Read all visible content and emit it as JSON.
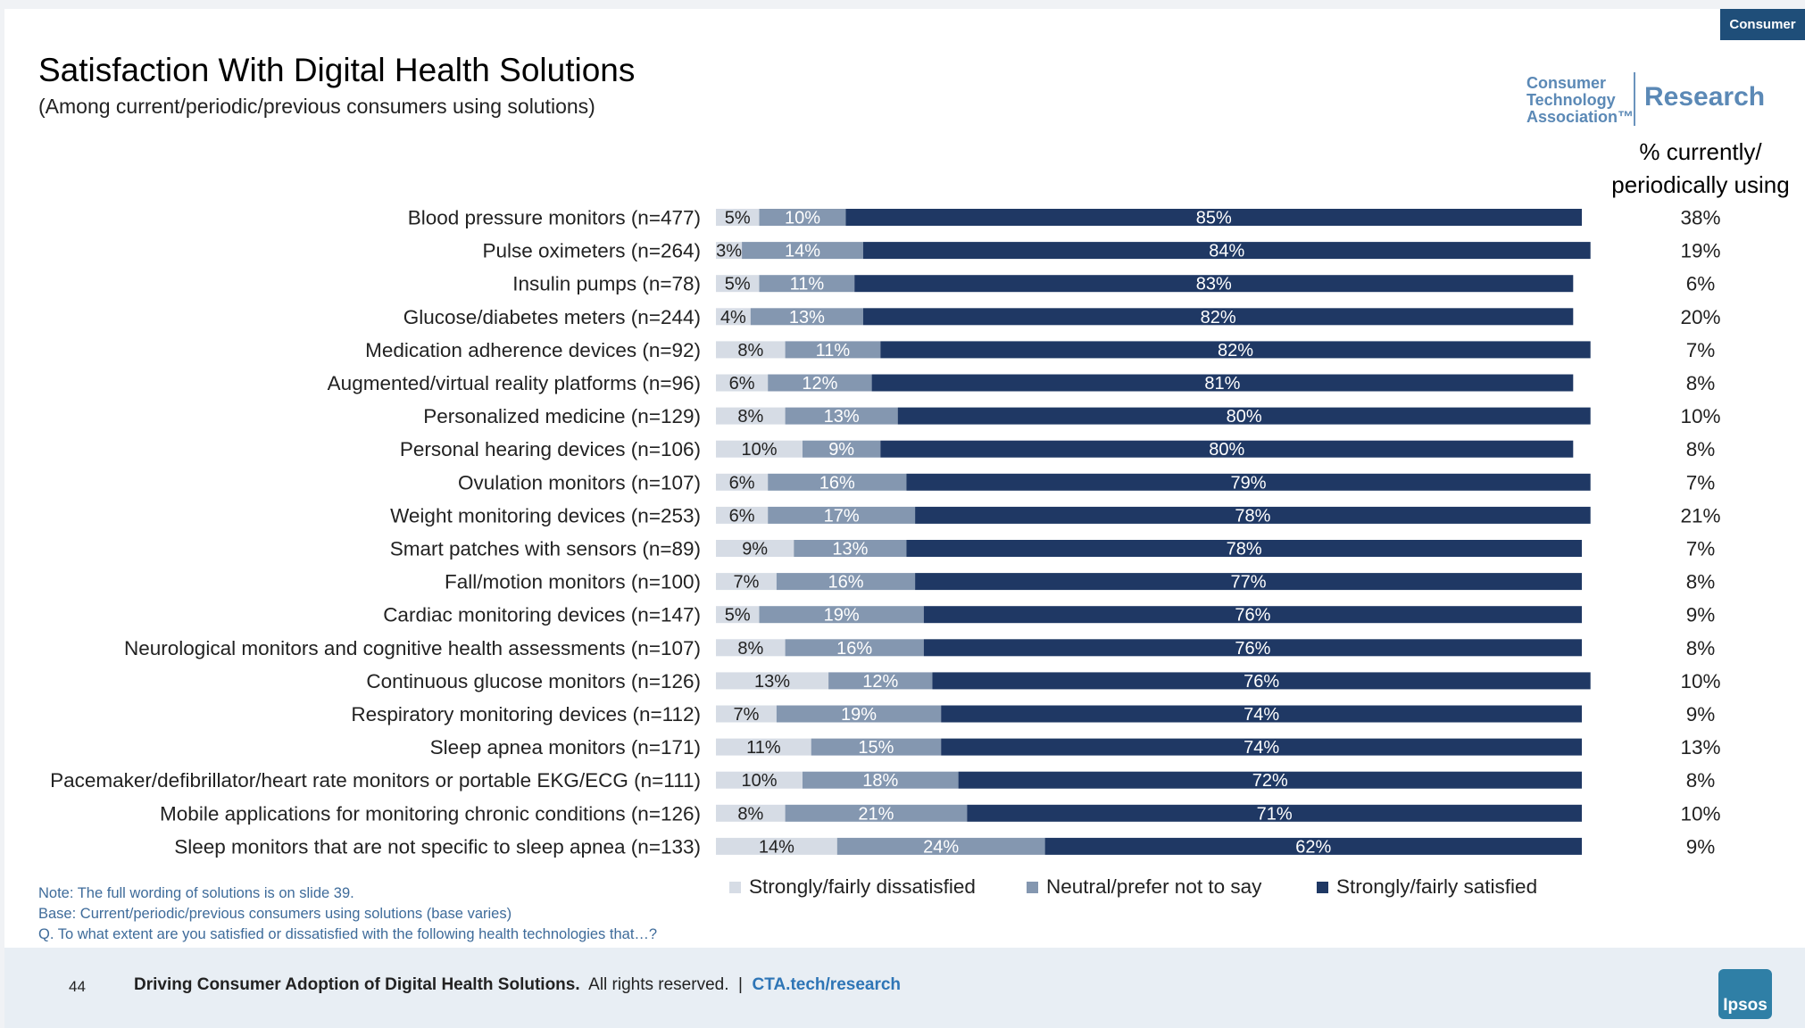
{
  "header": {
    "tag": "Consumer",
    "title": "Satisfaction With Digital Health Solutions",
    "subtitle": "(Among current/periodic/previous consumers using solutions)",
    "logo_org": "Consumer\nTechnology\nAssociation™",
    "logo_research": "Research"
  },
  "side_header": "% currently/ periodically using",
  "colors": {
    "dissatisfied": "#d6dce5",
    "neutral": "#8497b0",
    "satisfied": "#1f3864"
  },
  "chart_data": {
    "type": "bar",
    "orientation": "horizontal",
    "stacked": true,
    "categories": [
      "Blood pressure monitors (n=477)",
      "Pulse oximeters (n=264)",
      "Insulin pumps (n=78)",
      "Glucose/diabetes meters (n=244)",
      "Medication adherence devices (n=92)",
      "Augmented/virtual reality platforms (n=96)",
      "Personalized medicine (n=129)",
      "Personal hearing devices (n=106)",
      "Ovulation monitors (n=107)",
      "Weight monitoring devices (n=253)",
      "Smart patches with sensors (n=89)",
      "Fall/motion monitors (n=100)",
      "Cardiac monitoring devices (n=147)",
      "Neurological monitors and cognitive health assessments (n=107)",
      "Continuous glucose monitors (n=126)",
      "Respiratory monitoring devices (n=112)",
      "Sleep apnea monitors (n=171)",
      "Pacemaker/defibrillator/heart rate monitors or portable EKG/ECG (n=111)",
      "Mobile applications for monitoring chronic conditions (n=126)",
      "Sleep monitors that are not specific to sleep apnea (n=133)"
    ],
    "series": [
      {
        "name": "Strongly/fairly dissatisfied",
        "values": [
          5,
          3,
          5,
          4,
          8,
          6,
          8,
          10,
          6,
          6,
          9,
          7,
          5,
          8,
          13,
          7,
          11,
          10,
          8,
          14
        ]
      },
      {
        "name": "Neutral/prefer not to say",
        "values": [
          10,
          14,
          11,
          13,
          11,
          12,
          13,
          9,
          16,
          17,
          13,
          16,
          19,
          16,
          12,
          19,
          15,
          18,
          21,
          24
        ]
      },
      {
        "name": "Strongly/fairly satisfied",
        "values": [
          85,
          84,
          83,
          82,
          82,
          81,
          80,
          80,
          79,
          78,
          78,
          77,
          76,
          76,
          76,
          74,
          74,
          72,
          71,
          62
        ]
      }
    ],
    "usage_pct": [
      38,
      19,
      6,
      20,
      7,
      8,
      10,
      8,
      7,
      21,
      7,
      8,
      9,
      8,
      10,
      9,
      13,
      8,
      10,
      9
    ],
    "value_format": "{v}%",
    "legend_position": "bottom",
    "grid": false,
    "xlim": [
      0,
      100
    ]
  },
  "notes": [
    "Note: The full wording of solutions is on slide 39.",
    "Base: Current/periodic/previous consumers using solutions (base varies)",
    "Q. To what extent are you satisfied or dissatisfied with the following health technologies that…?"
  ],
  "footer": {
    "page": "44",
    "bold_text": "Driving Consumer Adoption of Digital Health Solutions.",
    "rights": "All rights reserved.",
    "separator": "|",
    "link": "CTA.tech/research",
    "ipsos_label": "Ipsos"
  }
}
